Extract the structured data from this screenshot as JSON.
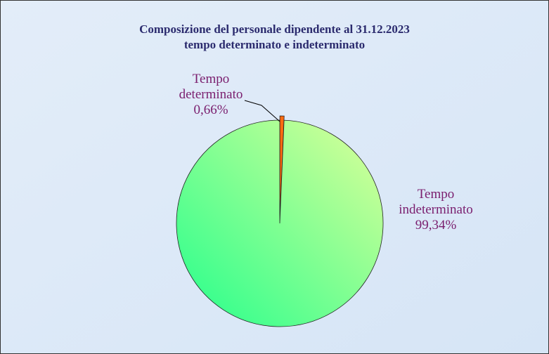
{
  "chart_data": {
    "type": "pie",
    "title": "Composizione del personale dipendente al 31.12.2023",
    "subtitle": "tempo determinato e indeterminato",
    "categories": [
      "Tempo determinato",
      "Tempo indeterminato"
    ],
    "values": [
      0.66,
      99.34
    ],
    "value_labels": [
      "0,66%",
      "99,34%"
    ],
    "colors": [
      "#ff6a10",
      "#66ff99"
    ]
  }
}
